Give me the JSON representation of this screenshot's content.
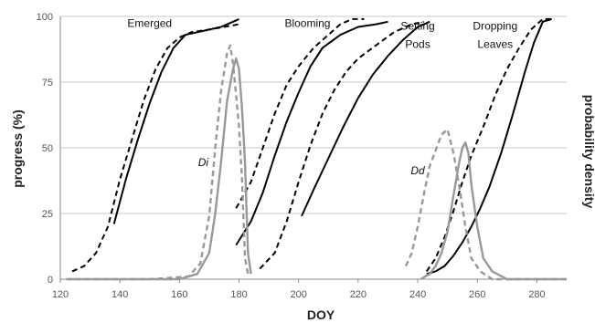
{
  "chart_data": {
    "type": "line",
    "xlabel": "DOY",
    "ylabel": "progress (%)",
    "y2label": "probability density",
    "xlim": [
      120,
      290
    ],
    "ylim": [
      0,
      100
    ],
    "xticks": [
      "120",
      "140",
      "160",
      "180",
      "200",
      "220",
      "240",
      "260",
      "280"
    ],
    "yticks": [
      "0",
      "25",
      "50",
      "75",
      "100"
    ],
    "grid": "horizontal",
    "colors": {
      "observed": "#000000",
      "density": "#999999",
      "grid": "#c8c8c8",
      "axis": "#888888"
    },
    "series": [
      {
        "group": "Emerged",
        "style": "dashed",
        "color": "#000000",
        "points": [
          [
            124,
            3
          ],
          [
            128,
            5
          ],
          [
            132,
            10
          ],
          [
            136,
            20
          ],
          [
            140,
            38
          ],
          [
            144,
            53
          ],
          [
            148,
            68
          ],
          [
            152,
            80
          ],
          [
            156,
            88
          ],
          [
            160,
            92
          ],
          [
            164,
            94
          ],
          [
            170,
            95
          ],
          [
            175,
            96
          ],
          [
            180,
            97
          ]
        ]
      },
      {
        "group": "Emerged",
        "style": "solid",
        "color": "#000000",
        "points": [
          [
            138,
            21
          ],
          [
            142,
            38
          ],
          [
            146,
            53
          ],
          [
            150,
            67
          ],
          [
            154,
            79
          ],
          [
            158,
            88
          ],
          [
            162,
            93
          ],
          [
            166,
            94
          ],
          [
            170,
            95
          ],
          [
            174,
            96
          ],
          [
            178,
            98
          ],
          [
            180,
            99
          ]
        ]
      },
      {
        "group": "Blooming",
        "style": "dashed",
        "color": "#000000",
        "points": [
          [
            179,
            27
          ],
          [
            184,
            37
          ],
          [
            188,
            50
          ],
          [
            192,
            63
          ],
          [
            196,
            74
          ],
          [
            200,
            81
          ],
          [
            205,
            88
          ],
          [
            210,
            93
          ],
          [
            214,
            97
          ],
          [
            218,
            99
          ],
          [
            222,
            99
          ]
        ]
      },
      {
        "group": "Blooming",
        "style": "solid",
        "color": "#000000",
        "points": [
          [
            179,
            13
          ],
          [
            184,
            22
          ],
          [
            188,
            33
          ],
          [
            192,
            47
          ],
          [
            196,
            60
          ],
          [
            200,
            71
          ],
          [
            204,
            81
          ],
          [
            208,
            88
          ],
          [
            214,
            93
          ],
          [
            220,
            96
          ],
          [
            226,
            97
          ],
          [
            230,
            98
          ]
        ]
      },
      {
        "group": "Setting Pods",
        "style": "dashed",
        "color": "#000000",
        "points": [
          [
            187,
            4
          ],
          [
            192,
            10
          ],
          [
            196,
            22
          ],
          [
            200,
            37
          ],
          [
            204,
            51
          ],
          [
            208,
            63
          ],
          [
            212,
            72
          ],
          [
            216,
            79
          ],
          [
            220,
            84
          ],
          [
            226,
            89
          ],
          [
            232,
            94
          ],
          [
            238,
            97
          ],
          [
            242,
            98
          ]
        ]
      },
      {
        "group": "Setting Pods",
        "style": "solid",
        "color": "#000000",
        "points": [
          [
            201,
            24
          ],
          [
            205,
            34
          ],
          [
            210,
            46
          ],
          [
            215,
            58
          ],
          [
            220,
            69
          ],
          [
            225,
            78
          ],
          [
            230,
            85
          ],
          [
            235,
            91
          ],
          [
            240,
            96
          ],
          [
            244,
            98
          ]
        ]
      },
      {
        "group": "Dropping Leaves",
        "style": "dashed",
        "color": "#000000",
        "points": [
          [
            243,
            3
          ],
          [
            246,
            8
          ],
          [
            249,
            16
          ],
          [
            252,
            26
          ],
          [
            255,
            37
          ],
          [
            258,
            47
          ],
          [
            262,
            58
          ],
          [
            266,
            70
          ],
          [
            270,
            80
          ],
          [
            274,
            88
          ],
          [
            278,
            95
          ],
          [
            282,
            99
          ],
          [
            286,
            99
          ]
        ]
      },
      {
        "group": "Dropping Leaves",
        "style": "solid",
        "color": "#000000",
        "points": [
          [
            243,
            2
          ],
          [
            246,
            3
          ],
          [
            249,
            5
          ],
          [
            252,
            9
          ],
          [
            255,
            14
          ],
          [
            258,
            20
          ],
          [
            261,
            27
          ],
          [
            264,
            35
          ],
          [
            268,
            48
          ],
          [
            272,
            63
          ],
          [
            276,
            79
          ],
          [
            279,
            90
          ],
          [
            282,
            98
          ],
          [
            285,
            99
          ]
        ]
      },
      {
        "group": "Di",
        "style": "dashed",
        "color": "#999999",
        "points": [
          [
            122,
            0
          ],
          [
            150,
            0
          ],
          [
            163,
            1
          ],
          [
            167,
            6
          ],
          [
            170,
            24
          ],
          [
            172,
            50
          ],
          [
            174,
            72
          ],
          [
            176,
            86
          ],
          [
            177,
            89
          ],
          [
            178,
            82
          ],
          [
            179,
            70
          ],
          [
            180,
            58
          ],
          [
            181,
            38
          ],
          [
            182,
            8
          ],
          [
            183,
            2
          ]
        ]
      },
      {
        "group": "Di",
        "style": "solid",
        "color": "#999999",
        "points": [
          [
            122,
            0
          ],
          [
            160,
            0
          ],
          [
            166,
            2
          ],
          [
            170,
            10
          ],
          [
            172,
            25
          ],
          [
            174,
            45
          ],
          [
            176,
            68
          ],
          [
            178,
            80
          ],
          [
            179,
            84
          ],
          [
            180,
            80
          ],
          [
            181,
            65
          ],
          [
            182,
            45
          ],
          [
            183,
            10
          ],
          [
            184,
            2
          ]
        ]
      },
      {
        "group": "Dd",
        "style": "dashed",
        "color": "#999999",
        "points": [
          [
            236,
            5
          ],
          [
            238,
            10
          ],
          [
            240,
            20
          ],
          [
            242,
            32
          ],
          [
            244,
            43
          ],
          [
            246,
            49
          ],
          [
            248,
            55
          ],
          [
            250,
            57
          ],
          [
            252,
            48
          ],
          [
            254,
            35
          ],
          [
            256,
            20
          ],
          [
            258,
            8
          ],
          [
            261,
            3
          ],
          [
            265,
            0
          ],
          [
            290,
            0
          ]
        ]
      },
      {
        "group": "Dd",
        "style": "solid",
        "color": "#999999",
        "points": [
          [
            241,
            0
          ],
          [
            244,
            2
          ],
          [
            246,
            5
          ],
          [
            248,
            10
          ],
          [
            250,
            18
          ],
          [
            252,
            32
          ],
          [
            254,
            45
          ],
          [
            255,
            50
          ],
          [
            256,
            52
          ],
          [
            257,
            48
          ],
          [
            258,
            36
          ],
          [
            260,
            20
          ],
          [
            262,
            8
          ],
          [
            265,
            3
          ],
          [
            270,
            0
          ],
          [
            290,
            0
          ]
        ]
      }
    ],
    "annotations": [
      {
        "text": "Emerged",
        "x": 150,
        "y": 96,
        "style": "normal"
      },
      {
        "text": "Blooming",
        "x": 203,
        "y": 96,
        "style": "normal"
      },
      {
        "text": "Setting",
        "x": 240,
        "y": 95,
        "style": "normal"
      },
      {
        "text": "Pods",
        "x": 240,
        "y": 88,
        "style": "normal"
      },
      {
        "text": "Dropping",
        "x": 266,
        "y": 95,
        "style": "normal"
      },
      {
        "text": "Leaves",
        "x": 266,
        "y": 88,
        "style": "normal"
      },
      {
        "text": "Di",
        "x": 168,
        "y": 43,
        "style": "italic"
      },
      {
        "text": "Dd",
        "x": 240,
        "y": 40,
        "style": "italic"
      }
    ]
  }
}
